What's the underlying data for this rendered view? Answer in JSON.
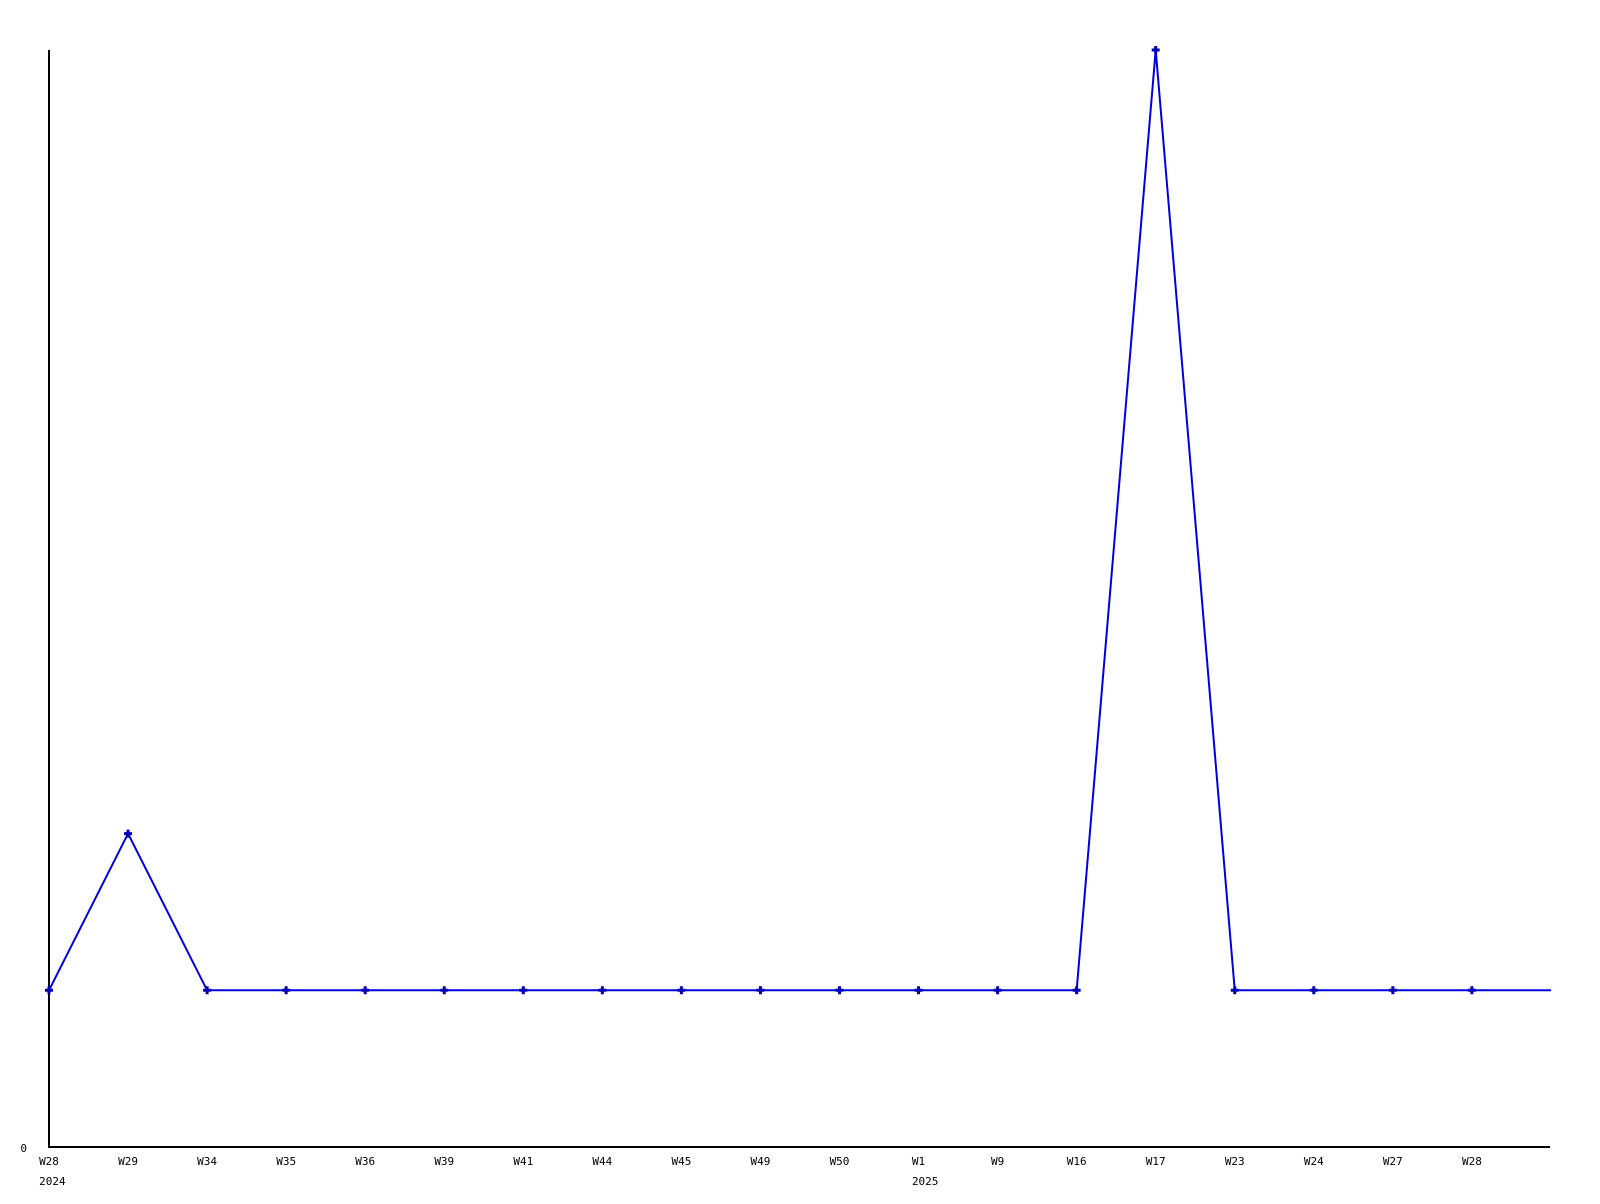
{
  "chart_data": {
    "type": "line",
    "title": "",
    "xlabel": "",
    "ylabel": "",
    "categories": [
      "W28",
      "W29",
      "W34",
      "W35",
      "W36",
      "W39",
      "W41",
      "W44",
      "W45",
      "W49",
      "W50",
      "W1",
      "W9",
      "W16",
      "W17",
      "W23",
      "W24",
      "W27",
      "W28"
    ],
    "values": [
      1,
      2,
      1,
      1,
      1,
      1,
      1,
      1,
      1,
      1,
      1,
      1,
      1,
      1,
      7,
      1,
      1,
      1,
      1
    ],
    "trailing_segment_value": 1,
    "year_markers": [
      {
        "category_index": 0,
        "label": "2024"
      },
      {
        "category_index": 11,
        "label": "2025"
      }
    ],
    "y_axis": {
      "tick_labels": [
        "0"
      ],
      "ylim": [
        0,
        7
      ]
    },
    "legend": "none",
    "grid": false,
    "marker_style": "plus",
    "colors": {
      "line": "#0000e0",
      "marker": "#0000b4",
      "axis": "#000000",
      "text": "#000000",
      "background": "#ffffff"
    }
  }
}
